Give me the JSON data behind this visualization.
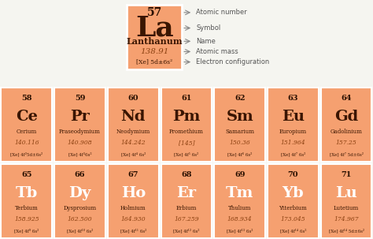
{
  "bg_color": "#f5f5f0",
  "cell_bg": "#f5a070",
  "cell_border": "#ffffff",
  "text_num": "#2a1000",
  "text_sym_white": "#ffffff",
  "text_sym_dark": "#3a1500",
  "text_name": "#3a1500",
  "text_mass": "#8b4010",
  "text_config": "#3a1500",
  "legend_line": "#888888",
  "legend_text": "#555555",
  "title_box": {
    "number": "57",
    "symbol": "La",
    "name": "Lanthanum",
    "mass": "138.91",
    "config": "[Xe] 5d±6s²"
  },
  "row1": [
    {
      "number": "58",
      "symbol": "Ce",
      "name": "Cerium",
      "mass": "140.116",
      "config": "[Xe] 4f²5d±6s²"
    },
    {
      "number": "59",
      "symbol": "Pr",
      "name": "Praseodymium",
      "mass": "140.908",
      "config": "[Xe] 4f³6s²"
    },
    {
      "number": "60",
      "symbol": "Nd",
      "name": "Neodymium",
      "mass": "144.242",
      "config": "[Xe] 4f⁴ 6s²"
    },
    {
      "number": "61",
      "symbol": "Pm",
      "name": "Promethium",
      "mass": "[145]",
      "config": "[Xe] 4f⁵ 6s²"
    },
    {
      "number": "62",
      "symbol": "Sm",
      "name": "Samarium",
      "mass": "150.36",
      "config": "[Xe] 4f⁶ 6s²"
    },
    {
      "number": "63",
      "symbol": "Eu",
      "name": "Europium",
      "mass": "151.964",
      "config": "[Xe] 4f⁷ 6s²"
    },
    {
      "number": "64",
      "symbol": "Gd",
      "name": "Gadolinium",
      "mass": "157.25",
      "config": "[Xe] 4f⁷ 5d±6s²"
    }
  ],
  "row2": [
    {
      "number": "65",
      "symbol": "Tb",
      "name": "Terbium",
      "mass": "158.925",
      "config": "[Xe] 4f⁹ 6s²"
    },
    {
      "number": "66",
      "symbol": "Dy",
      "name": "Dysprosium",
      "mass": "162.500",
      "config": "[Xe] 4f¹⁰ 6s²"
    },
    {
      "number": "67",
      "symbol": "Ho",
      "name": "Holmium",
      "mass": "164.930",
      "config": "[Xe] 4f¹¹ 6s²"
    },
    {
      "number": "68",
      "symbol": "Er",
      "name": "Erbium",
      "mass": "167.259",
      "config": "[Xe] 4f¹² 6s²"
    },
    {
      "number": "69",
      "symbol": "Tm",
      "name": "Thulium",
      "mass": "168.934",
      "config": "[Xe] 4f¹³ 6s²"
    },
    {
      "number": "70",
      "symbol": "Yb",
      "name": "Ytterbium",
      "mass": "173.045",
      "config": "[Xe] 4f¹⁴ 6s²"
    },
    {
      "number": "71",
      "symbol": "Lu",
      "name": "Lutetium",
      "mass": "174.967",
      "config": "[Xe] 4f¹⁴ 5d±6s²"
    }
  ],
  "figw": 4.74,
  "figh": 3.03,
  "dpi": 100
}
